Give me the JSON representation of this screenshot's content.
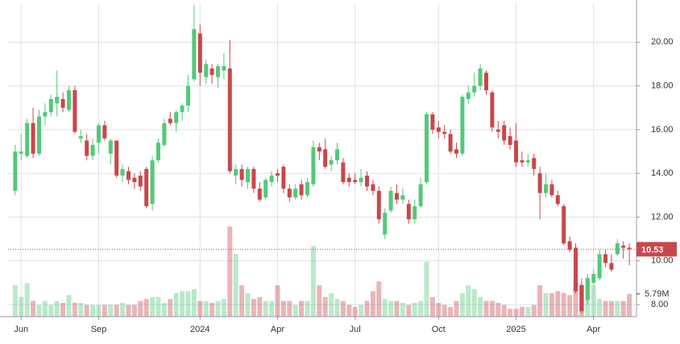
{
  "chart_data": {
    "type": "candlestick",
    "up_color": "#53c97a",
    "down_color": "#c9474a",
    "xlim": [
      -1.2,
      104.2
    ],
    "xticks": [
      {
        "value": 1,
        "label": "Jun"
      },
      {
        "value": 14,
        "label": "Sep"
      },
      {
        "value": 31,
        "label": "2024"
      },
      {
        "value": 44,
        "label": "Apr"
      },
      {
        "value": 57,
        "label": "Jul"
      },
      {
        "value": 71,
        "label": "Oct"
      },
      {
        "value": 84,
        "label": "2025"
      },
      {
        "value": 97,
        "label": "Apr"
      }
    ],
    "ylim": [
      7.45,
      21.78
    ],
    "yticks": [
      {
        "value": 8,
        "label": "8.00"
      },
      {
        "value": 10,
        "label": "10.00"
      },
      {
        "value": 12,
        "label": "12.00"
      },
      {
        "value": 14,
        "label": "14.00"
      },
      {
        "value": 16,
        "label": "16.00"
      },
      {
        "value": 18,
        "label": "18.00"
      },
      {
        "value": 20,
        "label": "20.00"
      }
    ],
    "grid": true,
    "volume_lim": [
      0,
      80
    ],
    "last_volume_label": "5.79M",
    "candles": [
      [
        13.2,
        15.3,
        13.0,
        15.0
      ],
      [
        14.9,
        15.8,
        14.6,
        15.0
      ],
      [
        14.8,
        16.5,
        14.7,
        16.3
      ],
      [
        16.3,
        17.0,
        14.7,
        14.9
      ],
      [
        14.9,
        16.9,
        14.8,
        16.6
      ],
      [
        16.6,
        17.2,
        16.2,
        16.8
      ],
      [
        16.8,
        17.6,
        16.6,
        17.4
      ],
      [
        17.2,
        18.7,
        16.6,
        17.5
      ],
      [
        17.4,
        17.7,
        16.8,
        17.0
      ],
      [
        16.9,
        18.0,
        16.8,
        17.8
      ],
      [
        17.8,
        18.0,
        15.8,
        15.9
      ],
      [
        15.6,
        16.0,
        15.4,
        15.7
      ],
      [
        15.5,
        15.8,
        14.6,
        14.8
      ],
      [
        14.8,
        15.6,
        14.6,
        15.3
      ],
      [
        15.4,
        16.3,
        14.9,
        16.2
      ],
      [
        16.2,
        16.4,
        15.5,
        15.6
      ],
      [
        14.9,
        15.6,
        14.4,
        15.5
      ],
      [
        15.5,
        15.5,
        13.8,
        13.9
      ],
      [
        13.9,
        14.4,
        13.6,
        14.2
      ],
      [
        14.1,
        14.3,
        13.5,
        13.7
      ],
      [
        13.8,
        14.0,
        13.3,
        13.6
      ],
      [
        13.9,
        14.1,
        13.2,
        13.4
      ],
      [
        14.2,
        14.3,
        12.4,
        12.5
      ],
      [
        12.6,
        14.8,
        12.3,
        14.6
      ],
      [
        14.6,
        15.6,
        14.5,
        15.4
      ],
      [
        15.3,
        16.5,
        15.2,
        16.3
      ],
      [
        16.5,
        16.8,
        16.2,
        16.3
      ],
      [
        16.3,
        16.9,
        15.9,
        16.8
      ],
      [
        16.8,
        17.2,
        16.4,
        17.1
      ],
      [
        17.1,
        18.5,
        16.8,
        18.0
      ],
      [
        18.3,
        21.7,
        18.2,
        20.6
      ],
      [
        20.4,
        20.8,
        18.0,
        18.6
      ],
      [
        18.4,
        19.2,
        18.1,
        19.0
      ],
      [
        18.8,
        19.0,
        18.1,
        18.5
      ],
      [
        18.4,
        19.0,
        17.9,
        18.9
      ],
      [
        18.7,
        19.5,
        18.3,
        18.9
      ],
      [
        18.8,
        20.1,
        14.0,
        14.1
      ],
      [
        13.9,
        14.4,
        13.5,
        14.2
      ],
      [
        14.2,
        14.4,
        13.4,
        13.7
      ],
      [
        13.6,
        14.3,
        13.3,
        14.2
      ],
      [
        14.2,
        14.3,
        13.1,
        13.3
      ],
      [
        13.3,
        13.6,
        12.7,
        12.8
      ],
      [
        12.9,
        13.8,
        12.8,
        13.7
      ],
      [
        13.6,
        14.1,
        13.4,
        13.9
      ],
      [
        14.0,
        14.2,
        13.6,
        13.9
      ],
      [
        14.3,
        14.4,
        13.1,
        13.3
      ],
      [
        13.3,
        13.5,
        12.7,
        12.9
      ],
      [
        12.9,
        13.5,
        12.8,
        13.3
      ],
      [
        13.5,
        13.7,
        12.8,
        13.0
      ],
      [
        13.0,
        13.8,
        12.9,
        13.6
      ],
      [
        13.5,
        15.5,
        13.4,
        15.2
      ],
      [
        15.2,
        15.4,
        14.6,
        15.0
      ],
      [
        15.1,
        15.6,
        14.2,
        14.3
      ],
      [
        14.4,
        14.8,
        14.1,
        14.6
      ],
      [
        14.6,
        15.4,
        14.4,
        15.1
      ],
      [
        14.5,
        14.7,
        13.5,
        13.6
      ],
      [
        13.8,
        14.0,
        13.4,
        13.6
      ],
      [
        13.7,
        14.0,
        13.5,
        13.6
      ],
      [
        13.6,
        14.2,
        13.4,
        13.8
      ],
      [
        13.9,
        14.1,
        13.2,
        13.4
      ],
      [
        13.5,
        13.7,
        13.0,
        13.2
      ],
      [
        13.2,
        13.4,
        11.7,
        11.9
      ],
      [
        11.2,
        12.4,
        11.0,
        12.2
      ],
      [
        12.3,
        13.4,
        12.2,
        13.2
      ],
      [
        13.1,
        13.5,
        12.6,
        12.8
      ],
      [
        12.8,
        13.3,
        12.6,
        13.0
      ],
      [
        12.6,
        12.8,
        11.7,
        11.9
      ],
      [
        11.9,
        12.8,
        11.7,
        12.5
      ],
      [
        12.5,
        13.8,
        12.4,
        13.5
      ],
      [
        13.6,
        16.8,
        13.5,
        16.7
      ],
      [
        16.7,
        16.8,
        15.8,
        16.0
      ],
      [
        16.1,
        16.4,
        15.6,
        15.9
      ],
      [
        15.9,
        16.2,
        15.6,
        15.8
      ],
      [
        15.8,
        16.0,
        14.9,
        15.0
      ],
      [
        15.1,
        15.4,
        14.7,
        14.9
      ],
      [
        14.9,
        17.6,
        14.8,
        17.5
      ],
      [
        17.4,
        18.0,
        17.2,
        17.7
      ],
      [
        17.7,
        18.6,
        17.5,
        18.0
      ],
      [
        18.0,
        19.0,
        17.8,
        18.8
      ],
      [
        18.6,
        18.7,
        17.6,
        17.8
      ],
      [
        17.7,
        17.8,
        15.9,
        16.1
      ],
      [
        16.0,
        16.4,
        15.6,
        15.9
      ],
      [
        16.2,
        16.4,
        15.3,
        15.5
      ],
      [
        15.7,
        16.1,
        15.1,
        15.3
      ],
      [
        15.5,
        16.3,
        14.3,
        14.5
      ],
      [
        14.6,
        15.0,
        14.3,
        14.5
      ],
      [
        14.5,
        14.9,
        14.3,
        14.6
      ],
      [
        14.7,
        14.9,
        13.9,
        14.2
      ],
      [
        14.0,
        14.3,
        11.9,
        13.1
      ],
      [
        13.1,
        14.0,
        12.9,
        13.5
      ],
      [
        13.5,
        13.7,
        12.9,
        13.0
      ],
      [
        13.0,
        13.2,
        12.5,
        12.6
      ],
      [
        12.5,
        12.6,
        10.7,
        10.8
      ],
      [
        10.9,
        11.1,
        10.4,
        10.5
      ],
      [
        10.6,
        10.8,
        8.5,
        8.6
      ],
      [
        8.9,
        9.2,
        7.6,
        7.7
      ],
      [
        8.2,
        9.4,
        8.0,
        9.2
      ],
      [
        9.0,
        9.6,
        8.9,
        9.4
      ],
      [
        9.2,
        10.5,
        9.1,
        10.3
      ],
      [
        10.3,
        10.5,
        9.7,
        9.9
      ],
      [
        9.9,
        10.3,
        9.5,
        9.6
      ],
      [
        10.3,
        11.0,
        10.2,
        10.8
      ],
      [
        10.7,
        10.9,
        10.1,
        10.6
      ],
      [
        10.6,
        10.8,
        9.8,
        10.53
      ]
    ],
    "volume": [
      8,
      5,
      8.5,
      4,
      3,
      4,
      3,
      4,
      3.5,
      5.5,
      3.5,
      3.5,
      3,
      3,
      3,
      3,
      3,
      3,
      3.5,
      3,
      3,
      4,
      4.5,
      5,
      5,
      3.5,
      4.5,
      6,
      6.5,
      6.5,
      7,
      4,
      4,
      3.5,
      4,
      4.5,
      23,
      16,
      8,
      6,
      4.5,
      5,
      4,
      4,
      8,
      4,
      4,
      3,
      4,
      4,
      18,
      8,
      5,
      6,
      4.5,
      4,
      3,
      2.5,
      3,
      4,
      6.5,
      9,
      4.5,
      4,
      4,
      3.5,
      3,
      3.5,
      4,
      14,
      5,
      3.5,
      3,
      2.5,
      4,
      6,
      8,
      7,
      5,
      4,
      4,
      3.5,
      3,
      2,
      2,
      2.5,
      2.5,
      3,
      8,
      6,
      6,
      6.5,
      6,
      5.5,
      9,
      8,
      10,
      8,
      4.5,
      4,
      4,
      4,
      4,
      5.79
    ]
  }
}
